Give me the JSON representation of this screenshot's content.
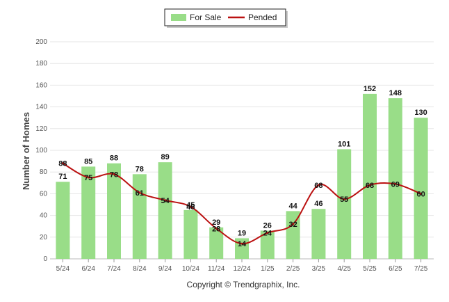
{
  "chart_data": {
    "type": "bar",
    "categories": [
      "5/24",
      "6/24",
      "7/24",
      "8/24",
      "9/24",
      "10/24",
      "11/24",
      "12/24",
      "1/25",
      "2/25",
      "3/25",
      "4/25",
      "5/25",
      "6/25",
      "7/25"
    ],
    "series": [
      {
        "name": "For Sale",
        "type": "bar",
        "color": "#99dd88",
        "values": [
          71,
          85,
          88,
          78,
          89,
          45,
          29,
          19,
          26,
          44,
          46,
          101,
          152,
          148,
          130
        ]
      },
      {
        "name": "Pended",
        "type": "line",
        "color": "#bb1111",
        "values": [
          88,
          75,
          78,
          61,
          54,
          48,
          28,
          14,
          24,
          32,
          68,
          55,
          68,
          69,
          60
        ]
      }
    ],
    "ylabel": "Number of Homes",
    "ylim": [
      0,
      200
    ],
    "yticks": [
      0,
      20,
      40,
      60,
      80,
      100,
      120,
      140,
      160,
      180,
      200
    ],
    "grid": true,
    "legend_position": "top-center",
    "copyright": "Copyright © Trendgraphix, Inc."
  }
}
